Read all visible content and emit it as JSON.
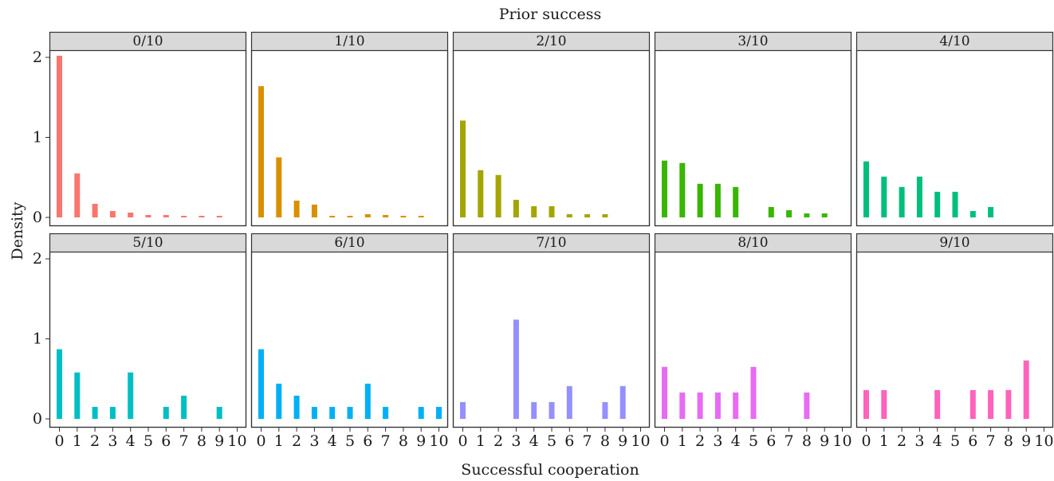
{
  "chart_data": {
    "type": "bar",
    "facet_title": "Prior success",
    "xlabel": "Successful cooperation",
    "ylabel": "Density",
    "x_categories": [
      "0",
      "1",
      "2",
      "3",
      "4",
      "5",
      "6",
      "7",
      "8",
      "9",
      "10"
    ],
    "ylim": [
      0,
      2.05
    ],
    "yticks": [
      "0",
      "1",
      "2"
    ],
    "grid": false,
    "legend": "none",
    "panels": [
      {
        "label": "0/10",
        "color": "#F8766D",
        "values": [
          2.02,
          0.55,
          0.17,
          0.08,
          0.06,
          0.03,
          0.03,
          0.02,
          0.02,
          0.02,
          0
        ]
      },
      {
        "label": "1/10",
        "color": "#D89000",
        "values": [
          1.64,
          0.75,
          0.21,
          0.16,
          0.02,
          0.02,
          0.04,
          0.03,
          0.02,
          0.02,
          0
        ]
      },
      {
        "label": "2/10",
        "color": "#A3A500",
        "values": [
          1.21,
          0.59,
          0.53,
          0.22,
          0.14,
          0.14,
          0.04,
          0.04,
          0.04,
          0,
          0
        ]
      },
      {
        "label": "3/10",
        "color": "#39B600",
        "values": [
          0.71,
          0.68,
          0.42,
          0.42,
          0.38,
          0,
          0.13,
          0.09,
          0.05,
          0.05,
          0
        ]
      },
      {
        "label": "4/10",
        "color": "#00BF7D",
        "values": [
          0.7,
          0.51,
          0.38,
          0.51,
          0.32,
          0.32,
          0.08,
          0.13,
          0,
          0,
          0
        ]
      },
      {
        "label": "5/10",
        "color": "#00BFC4",
        "values": [
          0.87,
          0.58,
          0.15,
          0.15,
          0.58,
          0,
          0.15,
          0.29,
          0,
          0.15,
          0
        ]
      },
      {
        "label": "6/10",
        "color": "#00B0F6",
        "values": [
          0.87,
          0.44,
          0.29,
          0.15,
          0.15,
          0.15,
          0.44,
          0.15,
          0,
          0.15,
          0.15
        ]
      },
      {
        "label": "7/10",
        "color": "#9590FF",
        "values": [
          0.21,
          0,
          0,
          1.24,
          0.21,
          0.21,
          0.41,
          0,
          0.21,
          0.41,
          0
        ]
      },
      {
        "label": "8/10",
        "color": "#E76BF3",
        "values": [
          0.65,
          0.33,
          0.33,
          0.33,
          0.33,
          0.65,
          0,
          0,
          0.33,
          0,
          0
        ]
      },
      {
        "label": "9/10",
        "color": "#FF62BC",
        "values": [
          0.36,
          0.36,
          0,
          0,
          0.36,
          0,
          0.36,
          0.36,
          0.36,
          0.73,
          0
        ]
      }
    ]
  }
}
